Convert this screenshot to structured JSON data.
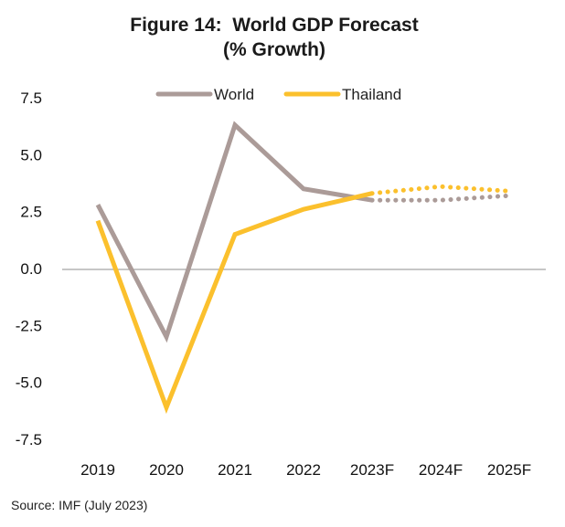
{
  "chart_data": {
    "type": "line",
    "title_line1": "Figure 14:  World GDP Forecast",
    "title_line2": "(% Growth)",
    "categories": [
      "2019",
      "2020",
      "2021",
      "2022",
      "2023F",
      "2024F",
      "2025F"
    ],
    "y_ticks": [
      "7.5",
      "5.0",
      "2.5",
      "0.0",
      "-2.5",
      "-5.0",
      "-7.5"
    ],
    "ylim": [
      -7.5,
      7.5
    ],
    "grid": false,
    "legend_position": "top",
    "series": [
      {
        "name": "World",
        "color": "#ab9b98",
        "values": [
          2.8,
          -3.0,
          6.3,
          3.5,
          3.0,
          3.0,
          3.2
        ],
        "forecast_from_index": 4
      },
      {
        "name": "Thailand",
        "color": "#fbc02d",
        "values": [
          2.1,
          -6.1,
          1.5,
          2.6,
          3.3,
          3.6,
          3.4
        ],
        "forecast_from_index": 4
      }
    ]
  },
  "source": "Source: IMF (July 2023)"
}
